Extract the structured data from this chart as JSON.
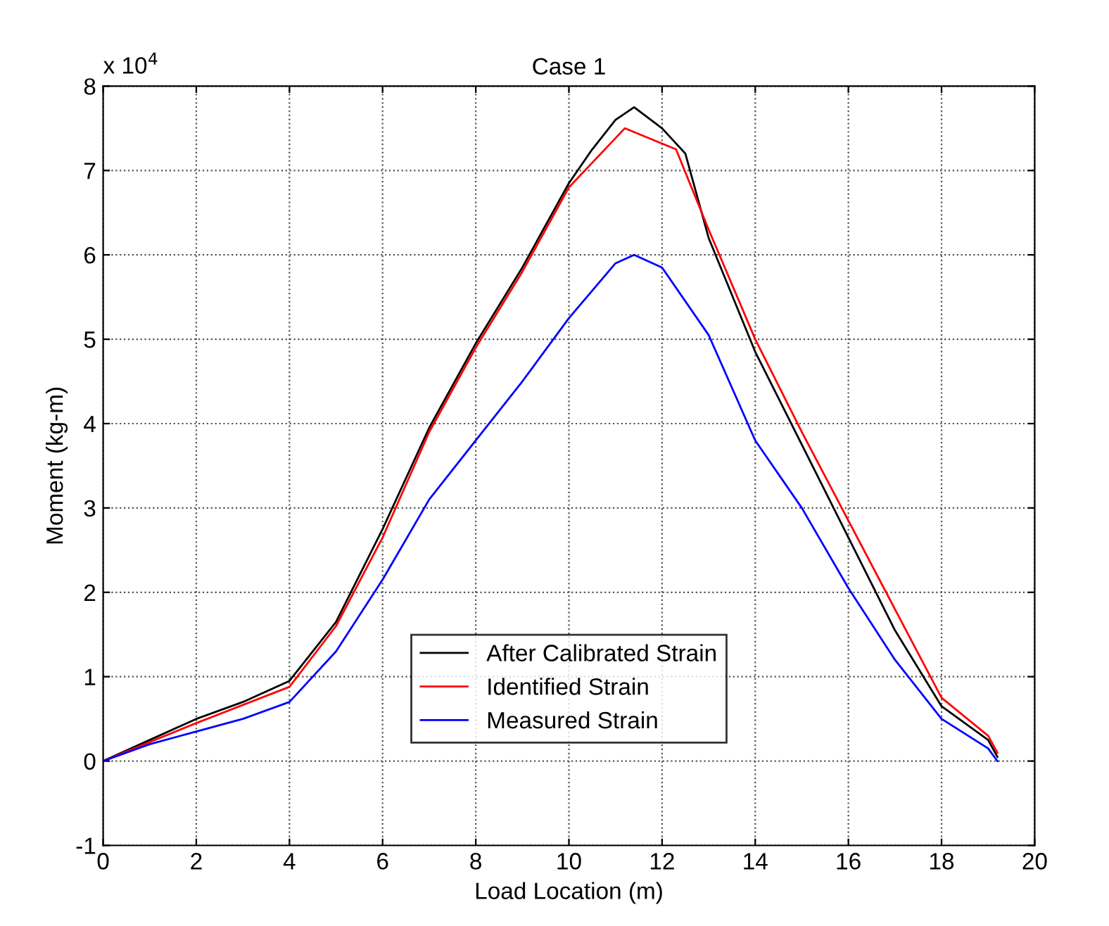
{
  "chart_data": {
    "type": "line",
    "title": "Case 1",
    "xlabel": "Load Location (m)",
    "ylabel": "Moment (kg-m)",
    "annotations": [
      "x 10$^{4}$"
    ],
    "xlim": [
      0,
      20
    ],
    "xticks": [
      0,
      2,
      4,
      6,
      8,
      10,
      12,
      14,
      16,
      18,
      20
    ],
    "ylim": [
      -1,
      8
    ],
    "yticks": [
      -1,
      0,
      1,
      2,
      3,
      4,
      5,
      6,
      7,
      8
    ],
    "grid": true,
    "legend": "bottom",
    "line_style": "solid",
    "marker": "none",
    "series": [
      {
        "name": "After Calibrated Strain",
        "color": "#000000",
        "x": [
          0,
          1,
          2,
          3,
          4,
          5,
          6,
          7,
          8,
          9,
          10,
          10.5,
          11,
          11.4,
          12,
          12.5,
          13,
          14,
          15,
          16,
          17,
          18,
          19,
          19.2
        ],
        "values": [
          0,
          0.25,
          0.5,
          0.7,
          0.95,
          1.65,
          2.75,
          3.95,
          4.95,
          5.85,
          6.85,
          7.25,
          7.6,
          7.75,
          7.5,
          7.2,
          6.2,
          4.85,
          3.75,
          2.65,
          1.55,
          0.65,
          0.25,
          0.05
        ]
      },
      {
        "name": "Identified Strain",
        "color": "#ff0000",
        "x": [
          0,
          2,
          4,
          5,
          6,
          7,
          8,
          9,
          10,
          11.2,
          12.3,
          13,
          14,
          15,
          16,
          17,
          18,
          19,
          19.2
        ],
        "values": [
          0,
          0.45,
          0.88,
          1.6,
          2.65,
          3.9,
          4.9,
          5.8,
          6.8,
          7.5,
          7.25,
          6.3,
          5.0,
          3.9,
          2.85,
          1.8,
          0.75,
          0.3,
          0.1
        ]
      },
      {
        "name": "Measured Strain",
        "color": "#0000ff",
        "x": [
          0,
          1,
          2,
          3,
          4,
          5,
          6,
          7,
          8,
          9,
          10,
          11,
          11.4,
          12,
          13,
          14,
          15,
          16,
          17,
          18,
          19,
          19.2
        ],
        "values": [
          0,
          0.2,
          0.35,
          0.5,
          0.7,
          1.3,
          2.15,
          3.1,
          3.8,
          4.5,
          5.25,
          5.9,
          6.0,
          5.85,
          5.05,
          3.8,
          3.0,
          2.05,
          1.2,
          0.5,
          0.15,
          0.0
        ]
      }
    ]
  }
}
